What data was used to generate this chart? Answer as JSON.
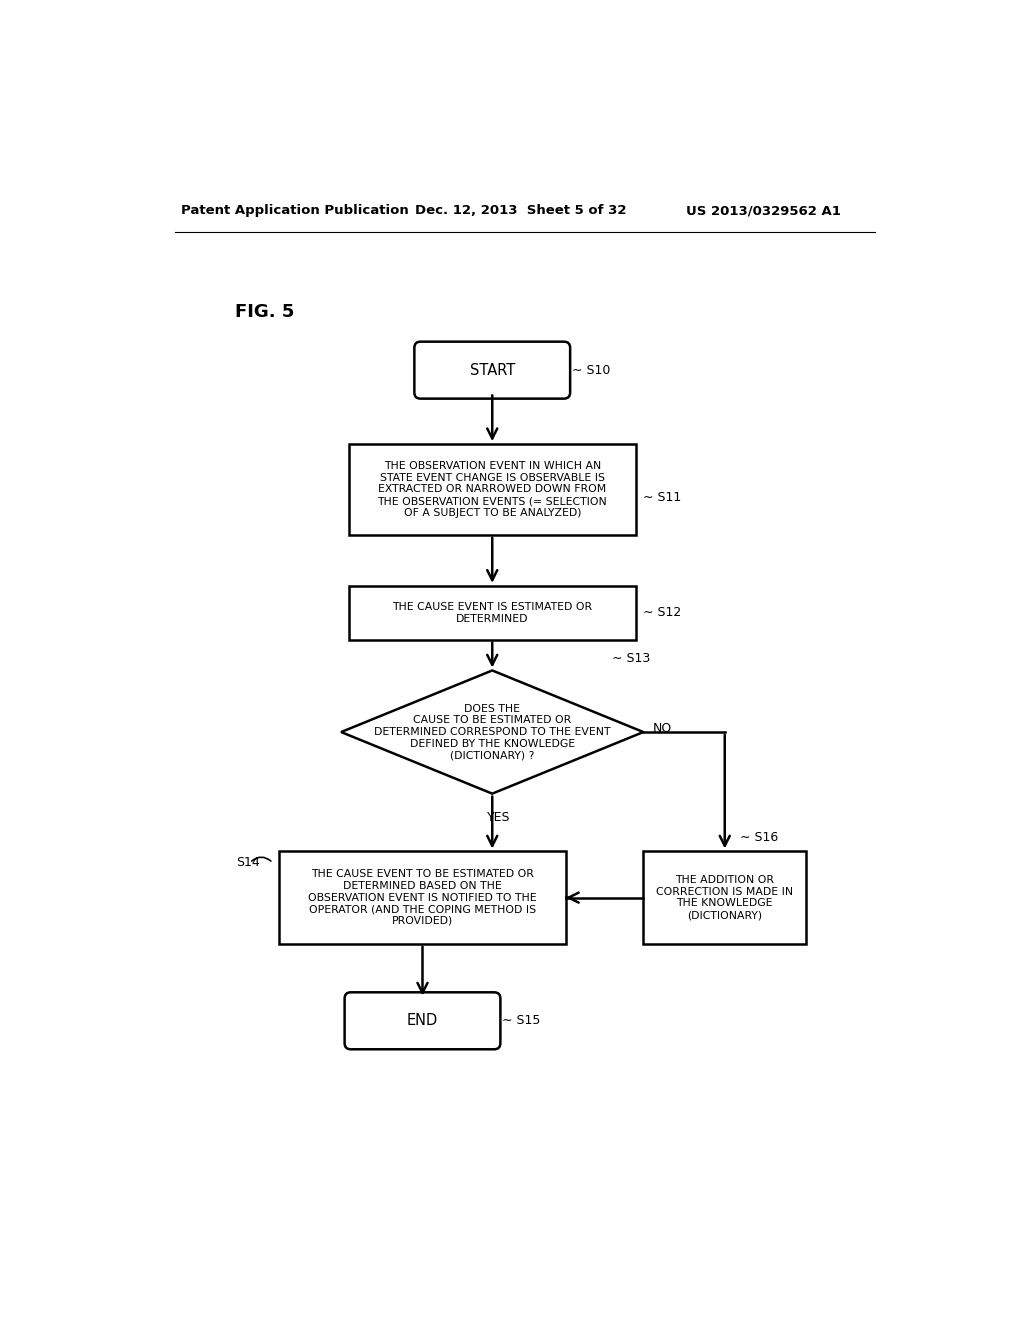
{
  "bg_color": "#ffffff",
  "header_left": "Patent Application Publication",
  "header_mid": "Dec. 12, 2013  Sheet 5 of 32",
  "header_right": "US 2013/0329562 A1",
  "fig_label": "FIG. 5",
  "start_label": "START",
  "end_label": "END",
  "s10_tag": "S10",
  "s11_tag": "S11",
  "s12_tag": "S12",
  "s13_tag": "S13",
  "s14_tag": "S14",
  "s15_tag": "S15",
  "s16_tag": "S16",
  "s11_text": "THE OBSERVATION EVENT IN WHICH AN\nSTATE EVENT CHANGE IS OBSERVABLE IS\nEXTRACTED OR NARROWED DOWN FROM\nTHE OBSERVATION EVENTS (= SELECTION\nOF A SUBJECT TO BE ANALYZED)",
  "s12_text": "THE CAUSE EVENT IS ESTIMATED OR\nDETERMINED",
  "s13_text": "DOES THE\nCAUSE TO BE ESTIMATED OR\nDETERMINED CORRESPOND TO THE EVENT\nDEFINED BY THE KNOWLEDGE\n(DICTIONARY) ?",
  "s14_text": "THE CAUSE EVENT TO BE ESTIMATED OR\nDETERMINED BASED ON THE\nOBSERVATION EVENT IS NOTIFIED TO THE\nOPERATOR (AND THE COPING METHOD IS\nPROVIDED)",
  "s16_text": "THE ADDITION OR\nCORRECTION IS MADE IN\nTHE KNOWLEDGE\n(DICTIONARY)",
  "yes_label": "YES",
  "no_label": "NO",
  "font_size_node": 7.8,
  "font_size_header": 9.5,
  "font_size_fig": 13,
  "font_size_tag": 9,
  "font_size_terminal": 10.5
}
